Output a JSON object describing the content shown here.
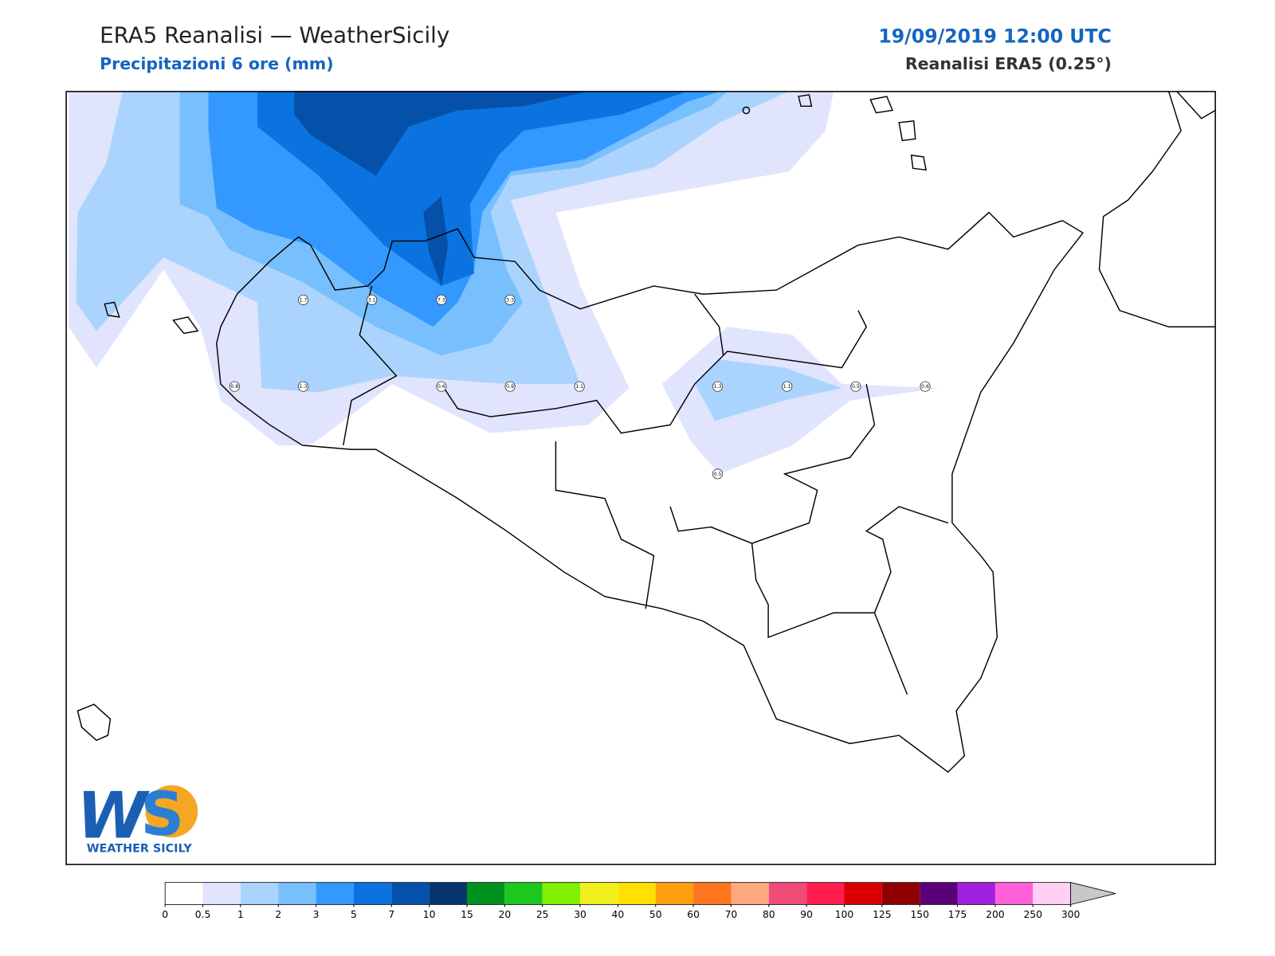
{
  "header": {
    "title": "ERA5 Reanalisi — WeatherSicily",
    "subtitle": "Precipitazioni 6 ore (mm)",
    "datetime": "19/09/2019 12:00 UTC",
    "model": "Reanalisi ERA5 (0.25°)"
  },
  "points": [
    1.7,
    3.1,
    7.3,
    3.3,
    0.8,
    1.3,
    0.6,
    0.9,
    1.1,
    1.3,
    1.1,
    0.5,
    0.6,
    0.5
  ],
  "colorbar": {
    "ticks": [
      0,
      0.5,
      1,
      2,
      3,
      5,
      7,
      10,
      15,
      20,
      25,
      30,
      40,
      50,
      60,
      70,
      80,
      90,
      100,
      125,
      150,
      175,
      200,
      250,
      300
    ],
    "colors": [
      "#ffffff",
      "#e0e4fc",
      "#aad4fd",
      "#78bffd",
      "#3399ff",
      "#0a73e0",
      "#0550a8",
      "#063570",
      "#00901e",
      "#1ec81e",
      "#7ef000",
      "#f0f01e",
      "#ffe000",
      "#ff9f10",
      "#ff7520",
      "#ffa880",
      "#f04c78",
      "#ff1f4f",
      "#d80000",
      "#900000",
      "#5a0078",
      "#a020e0",
      "#ff60d8",
      "#ffd0f4"
    ],
    "extend_color": "#c8c8c8"
  },
  "logo": {
    "text": "WEATHER SICILY"
  }
}
